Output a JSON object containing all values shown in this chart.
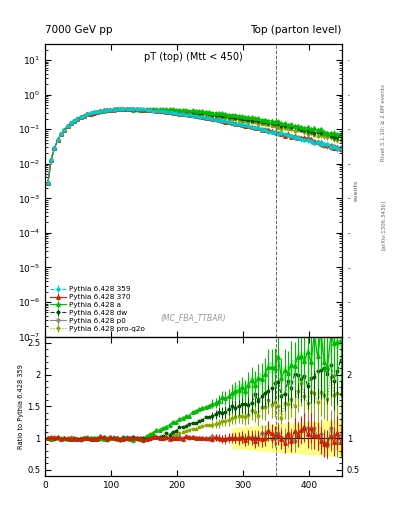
{
  "title_left": "7000 GeV pp",
  "title_right": "Top (parton level)",
  "plot_title": "pT (top) (Mtt < 450)",
  "ylabel_ratio": "Ratio to Pythia 6.428 359",
  "watermark": "(MC_FBA_TTBAR)",
  "right_label_top": "Rivet 3.1.10; ≥ 2.6M events",
  "right_label_bottom": "[arXiv:1306.3436]",
  "xlim": [
    0,
    450
  ],
  "ylim_main": [
    1e-07,
    30
  ],
  "ylim_ratio": [
    0.4,
    2.6
  ],
  "xline": 350,
  "series": [
    {
      "label": "Pythia 6.428 359",
      "color": "#00CCCC",
      "marker": "o",
      "ls": "--",
      "lw": 0.8,
      "ms": 2.0
    },
    {
      "label": "Pythia 6.428 370",
      "color": "#CC2200",
      "marker": "^",
      "ls": "-",
      "lw": 0.8,
      "ms": 2.5
    },
    {
      "label": "Pythia 6.428 a",
      "color": "#00BB00",
      "marker": "^",
      "ls": "-",
      "lw": 0.8,
      "ms": 2.5
    },
    {
      "label": "Pythia 6.428 dw",
      "color": "#005500",
      "marker": "*",
      "ls": "--",
      "lw": 0.8,
      "ms": 2.5
    },
    {
      "label": "Pythia 6.428 p0",
      "color": "#888888",
      "marker": "o",
      "ls": "-",
      "lw": 0.8,
      "ms": 2.0
    },
    {
      "label": "Pythia 6.428 pro-q2o",
      "color": "#88AA00",
      "marker": "*",
      "ls": ":",
      "lw": 0.8,
      "ms": 2.5
    }
  ],
  "bg_color": "#ffffff"
}
